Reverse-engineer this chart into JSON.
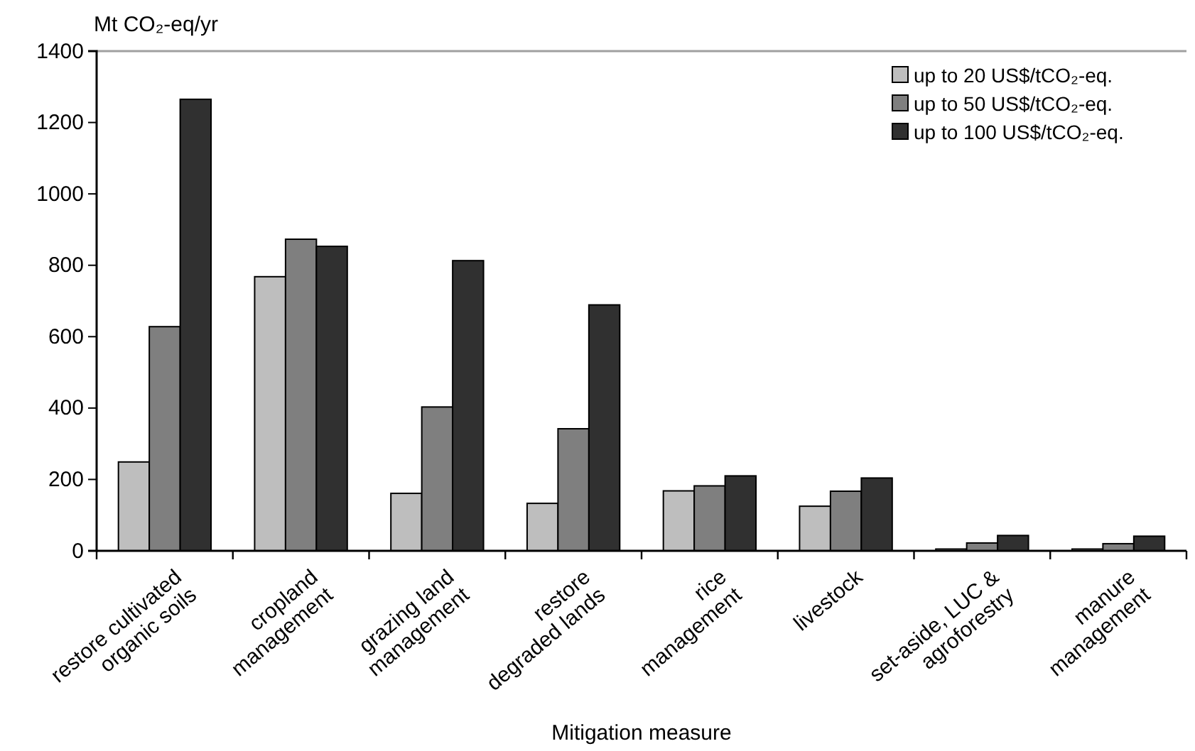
{
  "chart_data": {
    "type": "bar",
    "ylabel": "Mt CO₂-eq/yr",
    "xlabel": "Mitigation measure",
    "categories": [
      "restore cultivated\norganic soils",
      "cropland\nmanagement",
      "grazing land\nmanagement",
      "restore\ndegraded lands",
      "rice\nmanagement",
      "livestock",
      "set-aside, LUC &\nagroforestry",
      "manure\nmanagement"
    ],
    "series": [
      {
        "name": "up to 20 US$/tCO₂-eq.",
        "color": "#bebebe",
        "values": [
          249,
          768,
          161,
          133,
          168,
          125,
          5,
          5
        ]
      },
      {
        "name": "up to 50 US$/tCO₂-eq.",
        "color": "#7f7f7f",
        "values": [
          628,
          873,
          403,
          342,
          182,
          167,
          22,
          20
        ]
      },
      {
        "name": "up to 100 US$/tCO₂-eq.",
        "color": "#303030",
        "values": [
          1265,
          853,
          813,
          689,
          210,
          204,
          43,
          41
        ]
      }
    ],
    "ylim": [
      0,
      1400
    ],
    "yticks": [
      0,
      200,
      400,
      600,
      800,
      1000,
      1200,
      1400
    ],
    "legend": "top right",
    "grid": false
  }
}
